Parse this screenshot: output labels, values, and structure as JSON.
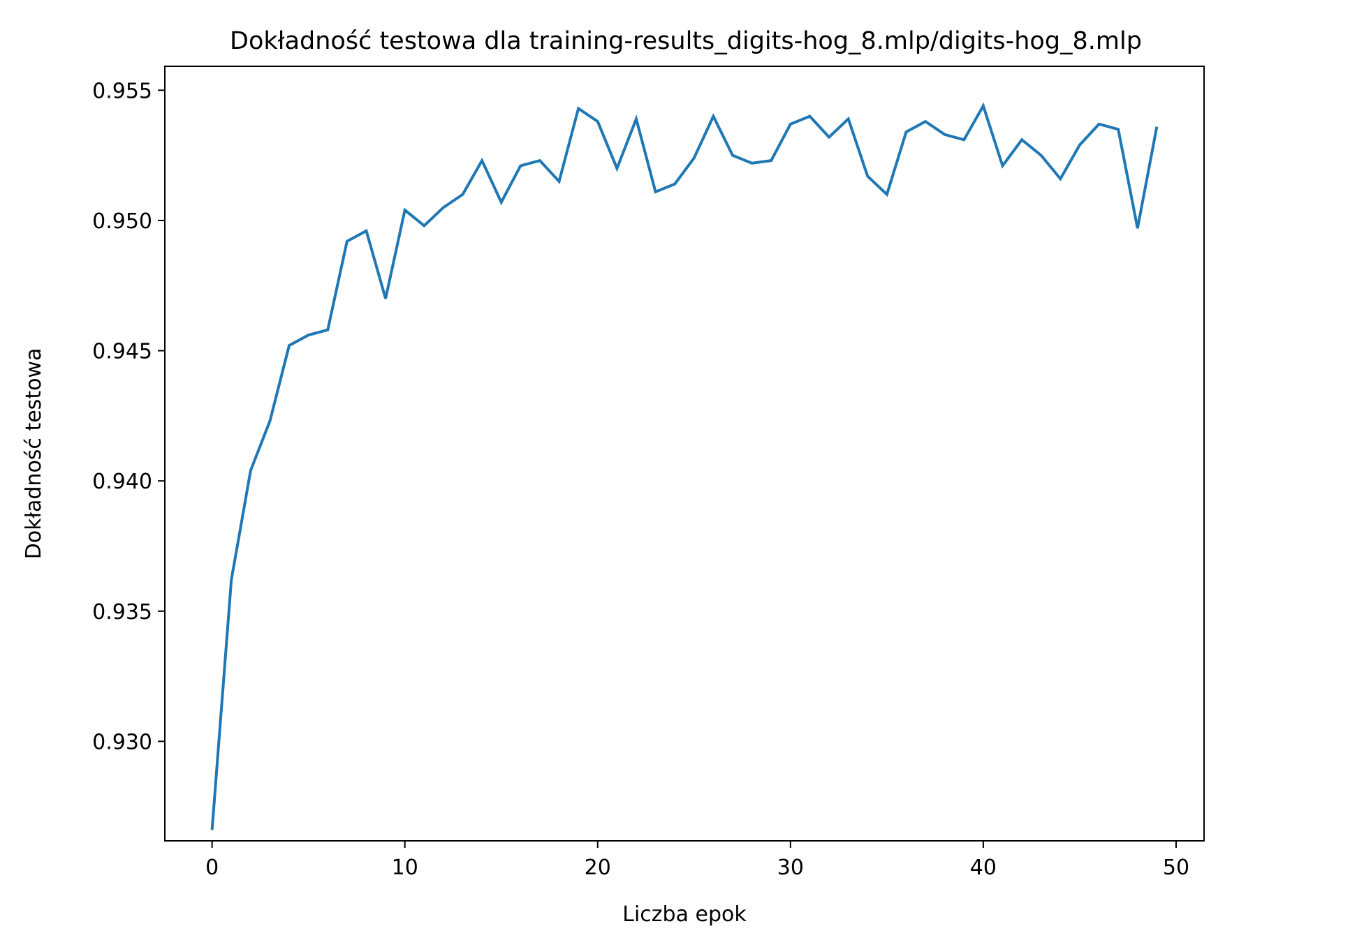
{
  "chart_data": {
    "type": "line",
    "title": "Dokładność testowa dla training-results_digits-hog_8.mlp/digits-hog_8.mlp",
    "xlabel": "Liczba epok",
    "ylabel": "Dokładność testowa",
    "xlim": [
      -2.45,
      51.45
    ],
    "ylim": [
      0.92618,
      0.95592
    ],
    "xticks": [
      0,
      10,
      20,
      30,
      40,
      50
    ],
    "yticks": [
      0.93,
      0.935,
      0.94,
      0.945,
      0.95,
      0.955
    ],
    "xtick_labels": [
      "0",
      "10",
      "20",
      "30",
      "40",
      "50"
    ],
    "ytick_labels": [
      "0.930",
      "0.935",
      "0.940",
      "0.945",
      "0.950",
      "0.955"
    ],
    "grid": false,
    "legend": "none",
    "line_color": "#1f77b4",
    "series": [
      {
        "x": [
          0,
          1,
          2,
          3,
          4,
          5,
          6,
          7,
          8,
          9,
          10,
          11,
          12,
          13,
          14,
          15,
          16,
          17,
          18,
          19,
          20,
          21,
          22,
          23,
          24,
          25,
          26,
          27,
          28,
          29,
          30,
          31,
          32,
          33,
          34,
          35,
          36,
          37,
          38,
          39,
          40,
          41,
          42,
          43,
          44,
          45,
          46,
          47,
          48,
          49
        ],
        "values": [
          0.9266,
          0.9362,
          0.9404,
          0.9423,
          0.9452,
          0.9456,
          0.9458,
          0.9492,
          0.9496,
          0.947,
          0.9504,
          0.9498,
          0.9505,
          0.951,
          0.9523,
          0.9507,
          0.9521,
          0.9523,
          0.9515,
          0.9543,
          0.9538,
          0.952,
          0.9539,
          0.9511,
          0.9514,
          0.9524,
          0.954,
          0.9525,
          0.9522,
          0.9523,
          0.9537,
          0.954,
          0.9532,
          0.9539,
          0.9517,
          0.951,
          0.9534,
          0.9538,
          0.9533,
          0.9531,
          0.9544,
          0.9521,
          0.9531,
          0.9525,
          0.9516,
          0.9529,
          0.9537,
          0.9535,
          0.9497,
          0.9536
        ]
      }
    ]
  }
}
